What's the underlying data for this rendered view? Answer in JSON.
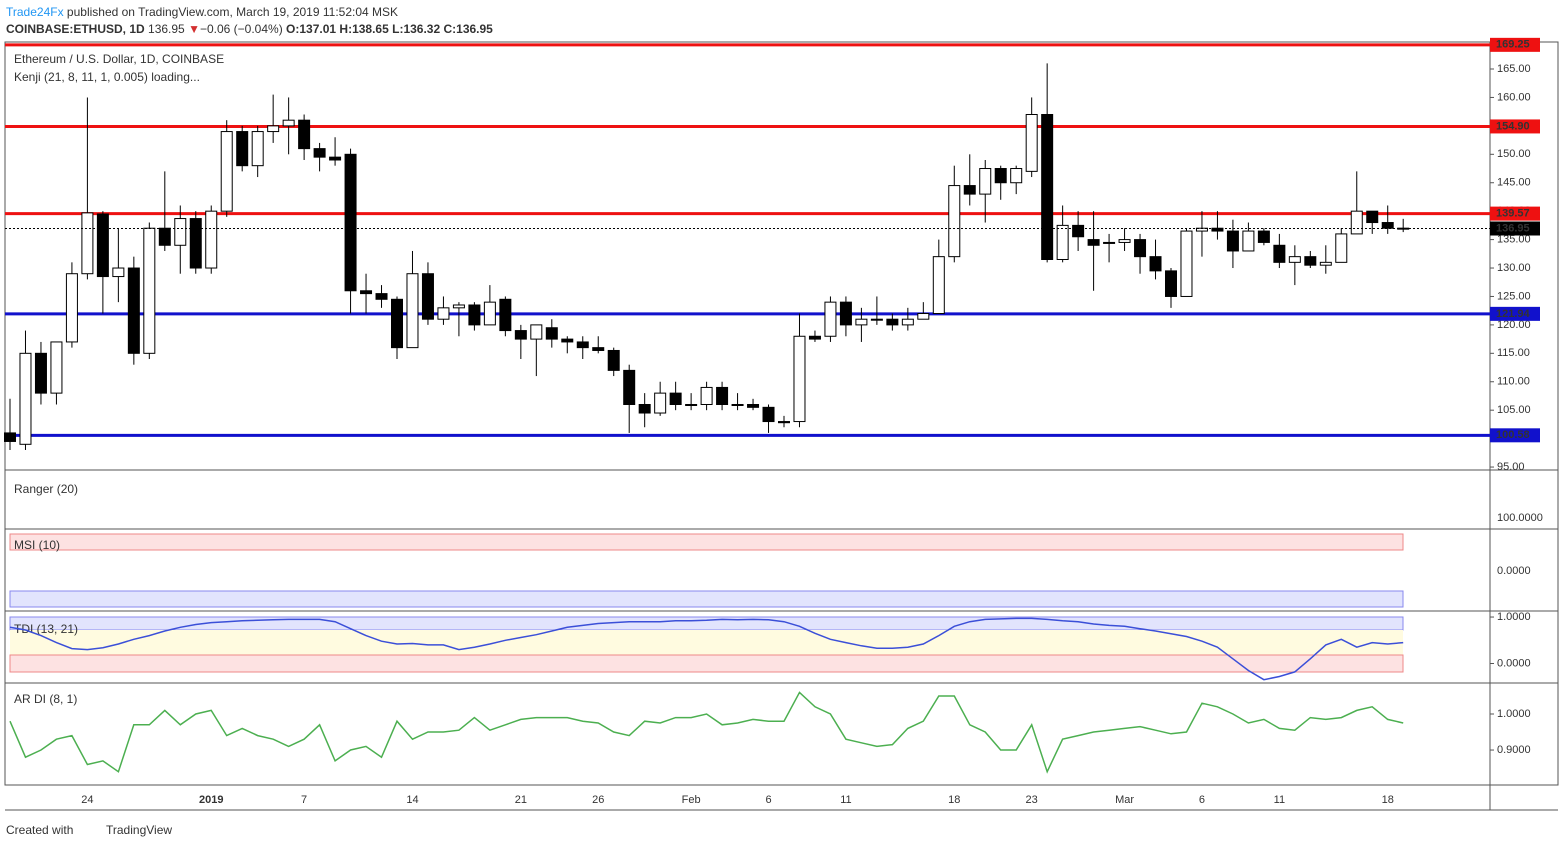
{
  "chart_data": {
    "type": "candlestick",
    "header": {
      "publisher": "Trade24Fx",
      "published": " published on TradingView.com, March 19, 2019 11:52:04 MSK",
      "symbol": "COINBASE:ETHUSD, 1D",
      "price": "136.95",
      "arrow": "▼",
      "change": "−0.06 (−0.04%)",
      "ohlc": "O:137.01 H:138.65 L:136.32 C:136.95"
    },
    "title": "Ethereum / U.S. Dollar, 1D, COINBASE",
    "subtitle": "Kenji (21, 8, 11, 1, 0.005) loading...",
    "categories": [
      null,
      null,
      null,
      null,
      null,
      "24",
      null,
      null,
      null,
      null,
      null,
      null,
      null,
      "2019",
      null,
      null,
      null,
      null,
      null,
      "7",
      null,
      null,
      null,
      null,
      null,
      null,
      "14",
      null,
      null,
      null,
      null,
      null,
      null,
      "21",
      null,
      null,
      null,
      null,
      "26",
      null,
      null,
      null,
      null,
      null,
      "Feb",
      null,
      null,
      null,
      null,
      "6",
      null,
      null,
      null,
      null,
      "11",
      null,
      null,
      null,
      null,
      null,
      null,
      "18",
      null,
      null,
      null,
      null,
      "23",
      null,
      null,
      null,
      null,
      null,
      "Mar",
      null,
      null,
      null,
      null,
      "6",
      null,
      null,
      null,
      null,
      "11",
      null,
      null,
      null,
      null,
      null,
      null,
      "18",
      null
    ],
    "ohlc": [
      [
        101,
        107,
        98,
        99.5
      ],
      [
        99,
        119,
        98,
        115
      ],
      [
        115,
        117,
        106,
        108
      ],
      [
        108,
        117,
        106,
        117
      ],
      [
        117,
        131,
        116,
        129
      ],
      [
        129,
        160,
        128,
        139.7
      ],
      [
        139.5,
        140,
        122,
        128.5
      ],
      [
        128.5,
        137,
        124,
        130
      ],
      [
        130,
        132,
        113,
        115
      ],
      [
        115,
        138,
        114,
        137
      ],
      [
        137,
        147,
        133,
        134
      ],
      [
        134,
        141,
        129,
        138.7
      ],
      [
        138.7,
        140,
        129,
        130
      ],
      [
        130,
        141,
        129,
        140
      ],
      [
        140,
        156,
        139,
        154
      ],
      [
        154,
        155,
        147,
        148
      ],
      [
        148,
        155,
        146,
        154
      ],
      [
        154,
        160.5,
        152,
        155
      ],
      [
        155,
        160,
        150,
        156
      ],
      [
        156,
        157,
        149,
        151
      ],
      [
        151,
        152,
        147,
        149.5
      ],
      [
        149.5,
        153,
        148,
        149
      ],
      [
        150,
        151,
        122,
        126
      ],
      [
        126,
        129,
        122,
        125.5
      ],
      [
        125.5,
        127,
        123,
        124.5
      ],
      [
        124.5,
        125,
        114,
        116
      ],
      [
        116,
        133,
        116,
        129
      ],
      [
        129,
        131,
        120,
        121
      ],
      [
        121,
        125,
        120,
        123
      ],
      [
        123,
        124,
        118,
        123.5
      ],
      [
        123.5,
        124,
        119,
        120
      ],
      [
        120,
        127,
        120,
        124
      ],
      [
        124.5,
        125,
        118,
        119
      ],
      [
        119,
        120,
        114,
        117.5
      ],
      [
        117.5,
        120,
        111,
        120
      ],
      [
        119.5,
        121,
        116,
        117.5
      ],
      [
        117.5,
        118,
        115,
        117
      ],
      [
        117,
        118,
        114,
        116
      ],
      [
        116,
        118,
        115,
        115.5
      ],
      [
        115.5,
        116,
        111,
        112
      ],
      [
        112,
        113,
        101,
        106
      ],
      [
        106,
        108,
        102,
        104.5
      ],
      [
        104.5,
        110,
        104,
        108
      ],
      [
        108,
        110,
        105,
        106
      ],
      [
        106,
        108,
        105,
        106
      ],
      [
        106,
        110,
        105,
        109
      ],
      [
        109,
        110,
        105,
        106
      ],
      [
        106,
        108,
        105,
        106
      ],
      [
        106,
        107,
        105,
        105.5
      ],
      [
        105.5,
        106,
        101,
        103
      ],
      [
        103,
        104,
        102,
        102.8
      ],
      [
        103,
        122,
        102,
        118
      ],
      [
        118,
        119,
        117,
        117.5
      ],
      [
        118,
        125,
        117,
        124
      ],
      [
        124,
        125,
        118,
        120
      ],
      [
        120,
        123,
        117,
        121
      ],
      [
        121,
        125,
        120,
        121
      ],
      [
        121,
        122,
        119,
        120
      ],
      [
        120,
        123,
        119,
        121
      ],
      [
        121,
        124,
        121,
        122
      ],
      [
        122,
        135,
        122,
        132
      ],
      [
        132,
        148,
        131,
        144.5
      ],
      [
        144.5,
        150,
        141,
        143
      ],
      [
        143,
        149,
        138,
        147.5
      ],
      [
        147.5,
        148,
        142,
        145
      ],
      [
        145,
        148,
        143,
        147.5
      ],
      [
        147,
        160,
        146,
        157
      ],
      [
        157,
        166,
        131,
        131.5
      ],
      [
        131.5,
        141,
        131,
        137.5
      ],
      [
        137.5,
        140,
        133,
        135.5
      ],
      [
        135,
        140,
        126,
        134
      ],
      [
        134.5,
        136,
        131,
        134.5
      ],
      [
        134.5,
        137,
        133,
        135
      ],
      [
        135,
        136,
        129,
        132
      ],
      [
        132,
        135,
        128,
        129.5
      ],
      [
        129.5,
        130,
        123,
        125
      ],
      [
        125,
        137,
        125,
        136.5
      ],
      [
        136.5,
        140,
        132,
        137
      ],
      [
        137,
        140,
        135,
        136.5
      ],
      [
        136.5,
        138.5,
        130,
        133
      ],
      [
        133,
        138,
        133,
        136.5
      ],
      [
        136.5,
        137,
        134,
        134.5
      ],
      [
        134,
        136,
        130,
        131
      ],
      [
        131,
        134,
        127,
        132
      ],
      [
        132,
        133,
        130,
        130.5
      ],
      [
        130.5,
        134,
        129,
        131
      ],
      [
        131,
        137,
        131,
        136
      ],
      [
        136,
        147,
        136,
        140
      ],
      [
        140,
        140,
        136,
        138
      ],
      [
        138,
        141,
        136,
        137
      ],
      [
        137.01,
        138.65,
        136.32,
        136.95
      ]
    ],
    "ylim": [
      94.48,
      169.75
    ],
    "yticks": [
      {
        "value": 95,
        "label": "95.00"
      },
      {
        "value": 100,
        "label": "100.00"
      },
      {
        "value": 105,
        "label": "105.00"
      },
      {
        "value": 110,
        "label": "110.00"
      },
      {
        "value": 115,
        "label": "115.00"
      },
      {
        "value": 120,
        "label": "120.00"
      },
      {
        "value": 125,
        "label": "125.00"
      },
      {
        "value": 130,
        "label": "130.00"
      },
      {
        "value": 135,
        "label": "135.00"
      },
      {
        "value": 140,
        "label": "140.00"
      },
      {
        "value": 145,
        "label": "145.00"
      },
      {
        "value": 150,
        "label": "150.00"
      },
      {
        "value": 155,
        "label": "155.00"
      },
      {
        "value": 160,
        "label": "160.00"
      },
      {
        "value": 165,
        "label": "165.00"
      }
    ],
    "levels": [
      {
        "value": 169.25,
        "label": "169.25",
        "color": "#ee1111"
      },
      {
        "value": 154.9,
        "label": "154.90",
        "color": "#ee1111"
      },
      {
        "value": 139.57,
        "label": "139.57",
        "color": "#ee1111"
      },
      {
        "value": 121.94,
        "label": "121.94",
        "color": "#1111cc"
      },
      {
        "value": 100.58,
        "label": "100.58",
        "color": "#1111cc"
      }
    ],
    "last_price": 136.95,
    "ranger": {
      "name": "Ranger (20)",
      "tick_labels": [
        "100.0000"
      ]
    },
    "msi": {
      "name": "MSI (10)",
      "tick_labels": [
        "0.0000"
      ]
    },
    "tdi": {
      "name": "TDI (13, 21)",
      "color": "#3b4fd8",
      "ylim": [
        -0.42,
        1.13
      ],
      "yticks": [
        {
          "value": 1,
          "label": "1.0000"
        },
        {
          "value": 0,
          "label": "0.0000"
        }
      ],
      "values": [
        0.78,
        0.72,
        0.6,
        0.45,
        0.32,
        0.3,
        0.34,
        0.42,
        0.52,
        0.6,
        0.7,
        0.78,
        0.84,
        0.88,
        0.9,
        0.92,
        0.93,
        0.94,
        0.95,
        0.95,
        0.95,
        0.9,
        0.75,
        0.6,
        0.48,
        0.42,
        0.43,
        0.4,
        0.4,
        0.3,
        0.35,
        0.42,
        0.5,
        0.56,
        0.62,
        0.7,
        0.78,
        0.82,
        0.86,
        0.88,
        0.9,
        0.9,
        0.9,
        0.92,
        0.92,
        0.93,
        0.95,
        0.94,
        0.95,
        0.94,
        0.9,
        0.8,
        0.65,
        0.52,
        0.45,
        0.38,
        0.33,
        0.33,
        0.35,
        0.42,
        0.6,
        0.8,
        0.9,
        0.95,
        0.96,
        0.97,
        0.97,
        0.95,
        0.92,
        0.9,
        0.85,
        0.82,
        0.8,
        0.75,
        0.7,
        0.64,
        0.58,
        0.48,
        0.35,
        0.1,
        -0.15,
        -0.35,
        -0.28,
        -0.18,
        0.1,
        0.4,
        0.52,
        0.35,
        0.45,
        0.42,
        0.45
      ]
    },
    "ardi": {
      "name": "AR DI (8, 1)",
      "color": "#4caf50",
      "ylim": [
        0.803,
        1.086
      ],
      "yticks": [
        {
          "value": 1,
          "label": "1.0000"
        },
        {
          "value": 0.9,
          "label": "0.9000"
        }
      ],
      "values": [
        0.98,
        0.88,
        0.9,
        0.93,
        0.94,
        0.86,
        0.87,
        0.84,
        0.97,
        0.97,
        1.01,
        0.97,
        1.0,
        1.01,
        0.94,
        0.96,
        0.94,
        0.93,
        0.91,
        0.93,
        0.97,
        0.87,
        0.9,
        0.91,
        0.88,
        0.98,
        0.93,
        0.95,
        0.95,
        0.955,
        0.99,
        0.955,
        0.97,
        0.985,
        0.99,
        0.99,
        0.99,
        0.98,
        0.975,
        0.95,
        0.94,
        0.98,
        0.975,
        0.99,
        0.99,
        1.0,
        0.97,
        0.975,
        0.985,
        0.98,
        0.98,
        1.06,
        1.02,
        1.0,
        0.93,
        0.92,
        0.91,
        0.915,
        0.96,
        0.98,
        1.05,
        1.05,
        0.97,
        0.95,
        0.9,
        0.9,
        0.97,
        0.84,
        0.93,
        0.94,
        0.95,
        0.955,
        0.96,
        0.965,
        0.955,
        0.945,
        0.95,
        1.03,
        1.02,
        1.0,
        0.975,
        0.985,
        0.96,
        0.955,
        0.99,
        0.985,
        0.99,
        1.01,
        1.02,
        0.985,
        0.975
      ]
    },
    "footer": {
      "created": "Created with",
      "brand": "TradingView"
    }
  }
}
